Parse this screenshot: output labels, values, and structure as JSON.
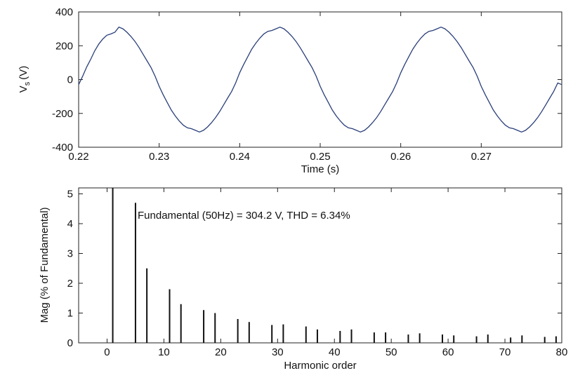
{
  "chart_data": [
    {
      "type": "line",
      "xlabel": "Time (s)",
      "ylabel_main": "V",
      "ylabel_sub": "s",
      "ylabel_unit": "(V)",
      "xlim": [
        0.22,
        0.28
      ],
      "ylim": [
        -400,
        400
      ],
      "xticks": [
        0.22,
        0.23,
        0.24,
        0.25,
        0.26,
        0.27
      ],
      "xtick_labels": [
        "0.22",
        "0.23",
        "0.24",
        "0.25",
        "0.26",
        "0.27"
      ],
      "yticks": [
        400,
        200,
        0,
        -200,
        -400
      ],
      "ytick_labels": [
        "400",
        "200",
        "0",
        "-200",
        "-400"
      ],
      "line_color": "#2a3f7a",
      "frequency_hz": 50,
      "series": [
        {
          "x": [
            0.22,
            0.2205,
            0.221,
            0.2215,
            0.222,
            0.2225,
            0.223,
            0.2235,
            0.224,
            0.2245,
            0.225,
            0.2255,
            0.226,
            0.2265,
            0.227,
            0.2275,
            0.228,
            0.2285,
            0.229,
            0.2295,
            0.23,
            0.2305,
            0.231,
            0.2315,
            0.232,
            0.2325,
            0.233,
            0.2335,
            0.234,
            0.2345,
            0.235,
            0.2355,
            0.236,
            0.2365,
            0.237,
            0.2375,
            0.238,
            0.2385,
            0.239,
            0.2395,
            0.24,
            0.2405,
            0.241,
            0.2415,
            0.242,
            0.2425,
            0.243,
            0.2435,
            0.244,
            0.2445,
            0.245,
            0.2455,
            0.246,
            0.2465,
            0.247,
            0.2475,
            0.248,
            0.2485,
            0.249,
            0.2495,
            0.25,
            0.2505,
            0.251,
            0.2515,
            0.252,
            0.2525,
            0.253,
            0.2535,
            0.254,
            0.2545,
            0.255,
            0.2555,
            0.256,
            0.2565,
            0.257,
            0.2575,
            0.258,
            0.2585,
            0.259,
            0.2595,
            0.26,
            0.2605,
            0.261,
            0.2615,
            0.262,
            0.2625,
            0.263,
            0.2635,
            0.264,
            0.2645,
            0.265,
            0.2655,
            0.266,
            0.2665,
            0.267,
            0.2675,
            0.268,
            0.2685,
            0.269,
            0.2695,
            0.27,
            0.2705,
            0.271,
            0.2715,
            0.272,
            0.2725,
            0.273,
            0.2735,
            0.274,
            0.2745,
            0.275,
            0.2755,
            0.276,
            0.2765,
            0.277,
            0.2775,
            0.278,
            0.2785,
            0.279,
            0.2795,
            0.28
          ],
          "y": [
            -30,
            20,
            75,
            120,
            170,
            210,
            240,
            262,
            270,
            280,
            310,
            300,
            280,
            255,
            225,
            190,
            150,
            110,
            70,
            20,
            -40,
            -90,
            -135,
            -180,
            -215,
            -245,
            -270,
            -285,
            -290,
            -300,
            -310,
            -300,
            -280,
            -255,
            -225,
            -190,
            -150,
            -110,
            -70,
            -20,
            40,
            90,
            135,
            180,
            215,
            245,
            270,
            285,
            290,
            300,
            310,
            300,
            280,
            255,
            225,
            190,
            150,
            110,
            70,
            20,
            -40,
            -90,
            -135,
            -180,
            -215,
            -245,
            -270,
            -285,
            -290,
            -300,
            -310,
            -300,
            -280,
            -255,
            -225,
            -190,
            -150,
            -110,
            -70,
            -20,
            40,
            90,
            135,
            180,
            215,
            245,
            270,
            285,
            290,
            300,
            310,
            300,
            280,
            255,
            225,
            190,
            150,
            110,
            70,
            20,
            -40,
            -90,
            -135,
            -180,
            -215,
            -245,
            -270,
            -285,
            -290,
            -300,
            -310,
            -300,
            -280,
            -255,
            -225,
            -190,
            -150,
            -110,
            -70,
            -20,
            -30
          ]
        }
      ]
    },
    {
      "type": "bar",
      "xlabel": "Harmonic order",
      "ylabel": "Mag (% of Fundamental)",
      "xlim": [
        -5,
        80
      ],
      "ylim": [
        0,
        5.2
      ],
      "xticks": [
        0,
        10,
        20,
        30,
        40,
        50,
        60,
        70,
        80
      ],
      "xtick_labels": [
        "0",
        "10",
        "20",
        "30",
        "40",
        "50",
        "60",
        "70",
        "80"
      ],
      "yticks": [
        0,
        1,
        2,
        3,
        4,
        5
      ],
      "ytick_labels": [
        "0",
        "1",
        "2",
        "3",
        "4",
        "5"
      ],
      "annotation": "Fundamental (50Hz) = 304.2 V, THD = 6.34%",
      "bar_color": "#111111",
      "harmonics": [
        1,
        5,
        7,
        11,
        13,
        17,
        19,
        23,
        25,
        29,
        31,
        35,
        37,
        41,
        43,
        47,
        49,
        53,
        55,
        59,
        61,
        65,
        67,
        71,
        73,
        77,
        79
      ],
      "values": [
        5.2,
        4.7,
        2.5,
        1.8,
        1.3,
        1.1,
        1.0,
        0.8,
        0.7,
        0.6,
        0.62,
        0.55,
        0.45,
        0.4,
        0.45,
        0.35,
        0.35,
        0.28,
        0.32,
        0.28,
        0.25,
        0.22,
        0.28,
        0.18,
        0.25,
        0.2,
        0.22
      ]
    }
  ]
}
